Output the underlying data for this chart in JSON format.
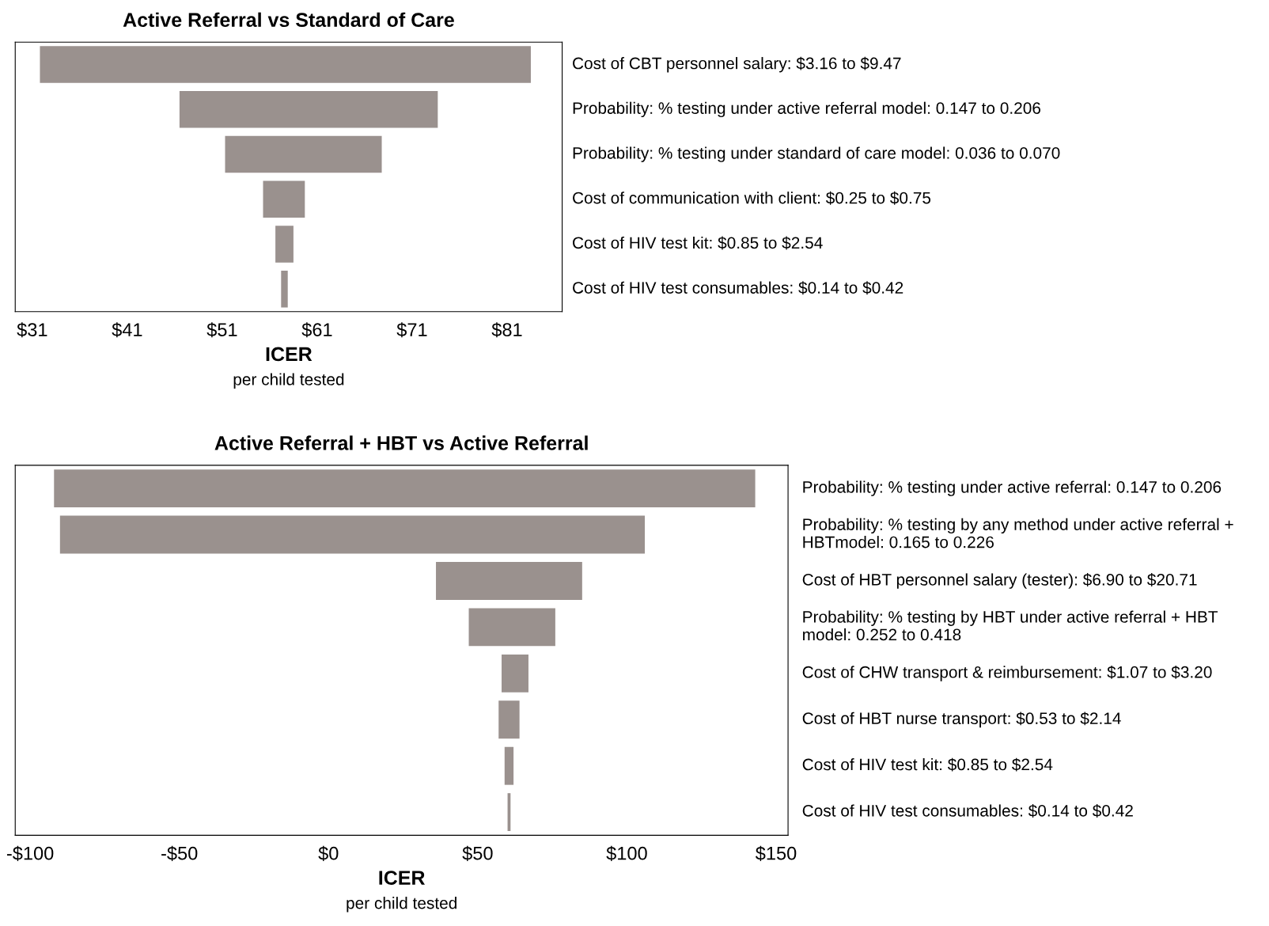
{
  "chart_data": [
    {
      "type": "bar",
      "orientation": "horizontal",
      "title": "Active Referral vs Standard of Care",
      "xlabel": "ICER",
      "annotations": [
        "per child tested"
      ],
      "categories": [
        "Cost of CBT personnel salary: $3.16 to $9.47",
        "Probability: % testing under active referral model: 0.147 to 0.206",
        "Probability: % testing under standard of care model: 0.036 to 0.070",
        "Cost of communication with client: $0.25 to $0.75",
        "Cost of HIV test kit: $0.85 to $2.54",
        "Cost of HIV test consumables: $0.14 to $0.42"
      ],
      "base": [
        31.8,
        46.5,
        51.3,
        55.3,
        56.6,
        57.2
      ],
      "values": [
        51.7,
        27.2,
        16.5,
        4.4,
        1.9,
        0.7
      ],
      "color": "#9a918e",
      "xlim": [
        29.2,
        86.8
      ],
      "xticks": [
        {
          "value": 31,
          "label": "$31"
        },
        {
          "value": 41,
          "label": "$41"
        },
        {
          "value": 51,
          "label": "$51"
        },
        {
          "value": 61,
          "label": "$61"
        },
        {
          "value": 71,
          "label": "$71"
        },
        {
          "value": 81,
          "label": "$81"
        }
      ],
      "grid": false,
      "legend": false
    },
    {
      "type": "bar",
      "orientation": "horizontal",
      "title": "Active Referral + HBT vs Active Referral",
      "xlabel": "ICER",
      "annotations": [
        "per child tested"
      ],
      "categories": [
        "Probability: % testing under active referral: 0.147 to 0.206",
        "Probability: % testing by any method under active referral + HBTmodel: 0.165 to 0.226",
        "Cost of HBT personnel salary (tester): $6.90 to $20.71",
        "Probability: % testing by HBT under active referral + HBT model: 0.252 to 0.418",
        "Cost of CHW transport & reimbursement: $1.07 to $3.20",
        "Cost of HBT nurse transport: $0.53 to $2.14",
        "Cost of HIV test kit: $0.85 to $2.54",
        "Cost of HIV test consumables: $0.14 to $0.42"
      ],
      "base": [
        -92,
        -90,
        36,
        47,
        58,
        57,
        59,
        60
      ],
      "values": [
        235,
        196,
        49,
        29,
        9,
        7,
        3,
        1
      ],
      "color": "#9a918e",
      "xlim": [
        -105,
        154
      ],
      "xticks": [
        {
          "value": -100,
          "label": "-$100"
        },
        {
          "value": -50,
          "label": "-$50"
        },
        {
          "value": 0,
          "label": "$0"
        },
        {
          "value": 50,
          "label": "$50"
        },
        {
          "value": 100,
          "label": "$100"
        },
        {
          "value": 150,
          "label": "$150"
        }
      ],
      "grid": false,
      "legend": false
    }
  ]
}
